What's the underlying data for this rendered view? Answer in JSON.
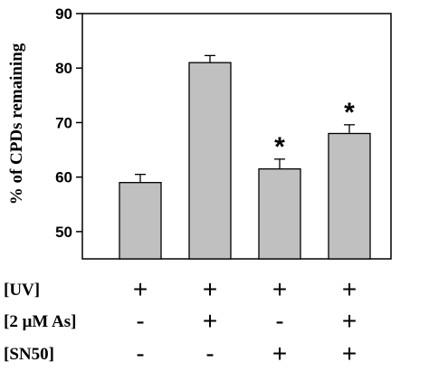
{
  "chart_data": {
    "type": "bar",
    "ylabel": "% of CPDs remaining",
    "ylim": [
      45,
      90
    ],
    "yticks": [
      50,
      60,
      70,
      80,
      90
    ],
    "grid": false,
    "bar_color": "#c0c0c0",
    "values": [
      59,
      81,
      61.5,
      68
    ],
    "errors": [
      1.5,
      1.3,
      1.8,
      1.6
    ],
    "annotations": [
      "",
      "",
      "*",
      "*"
    ],
    "condition_rows": [
      {
        "label": "[UV]",
        "signs": [
          "+",
          "+",
          "+",
          "+"
        ]
      },
      {
        "label": "[2 μM As]",
        "signs": [
          "-",
          "+",
          "-",
          "+"
        ]
      },
      {
        "label": "[SN50]",
        "signs": [
          "-",
          "-",
          "+",
          "+"
        ]
      }
    ]
  }
}
